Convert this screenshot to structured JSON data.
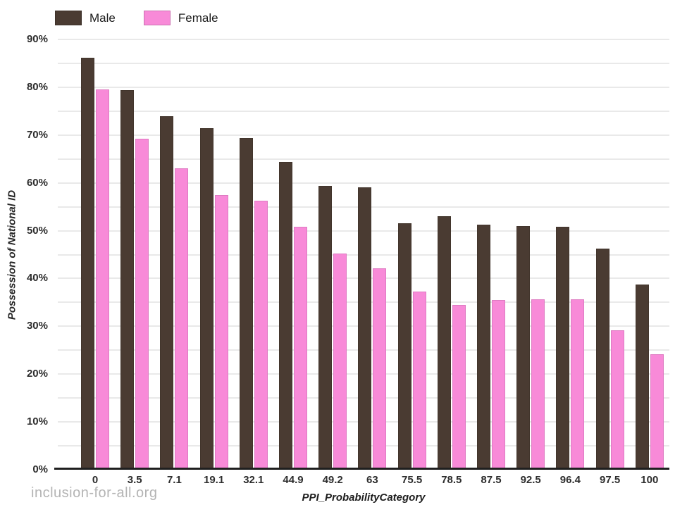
{
  "chart_data": {
    "type": "bar",
    "title": "",
    "categories": [
      "0",
      "3.5",
      "7.1",
      "19.1",
      "32.1",
      "44.9",
      "49.2",
      "63",
      "75.5",
      "78.5",
      "87.5",
      "92.5",
      "96.4",
      "97.5",
      "100"
    ],
    "series": [
      {
        "name": "Male",
        "color": "#4a3b32",
        "values": [
          86.1,
          79.4,
          74.0,
          71.5,
          69.4,
          64.4,
          59.4,
          59.0,
          51.6,
          53.0,
          51.2,
          51.0,
          50.8,
          46.2,
          38.8
        ]
      },
      {
        "name": "Female",
        "color": "#f88ad8",
        "values": [
          79.6,
          69.3,
          63.0,
          57.4,
          56.3,
          50.8,
          45.2,
          42.1,
          37.3,
          34.5,
          35.5,
          35.7,
          35.6,
          29.2,
          24.1
        ]
      }
    ],
    "xlabel": "PPI_ProbabilityCategory",
    "ylabel": "Possession of National ID",
    "ylim": [
      0,
      90
    ],
    "ytick_step": 10,
    "grid_step": 5,
    "ytick_suffix": "%",
    "legend_position": "top-left",
    "grid": true
  },
  "footer": {
    "watermark": "inclusion-for-all.org"
  },
  "colors": {
    "axis_line": "#1f1f1f",
    "gridline": "#e9e9e9",
    "tick_label": "#2d2d2d",
    "watermark": "#b4b4b4"
  }
}
